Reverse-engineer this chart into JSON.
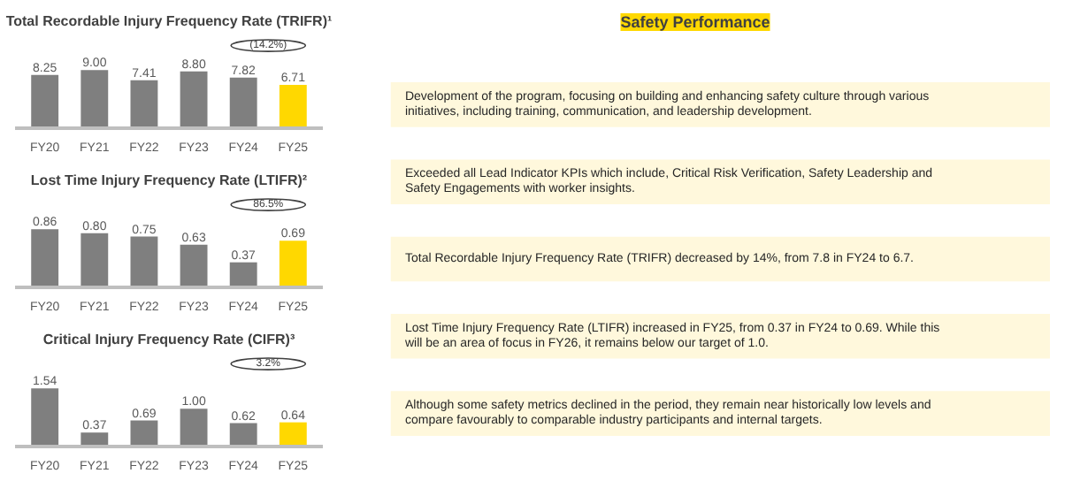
{
  "chart_data": [
    {
      "type": "bar",
      "title": "Total Recordable Injury Frequency Rate (TRIFR)¹",
      "categories": [
        "FY20",
        "FY21",
        "FY22",
        "FY23",
        "FY24",
        "FY25"
      ],
      "values": [
        8.25,
        9.0,
        7.41,
        8.8,
        7.82,
        6.71
      ],
      "colors": [
        "#7f7f7f",
        "#7f7f7f",
        "#7f7f7f",
        "#7f7f7f",
        "#7f7f7f",
        "#ffd800"
      ],
      "value_labels": [
        "8.25",
        "9.00",
        "7.41",
        "8.80",
        "7.82",
        "6.71"
      ],
      "annotations": [
        "(14.2%)"
      ]
    },
    {
      "type": "bar",
      "title": "Lost Time Injury Frequency Rate (LTIFR)²",
      "categories": [
        "FY20",
        "FY21",
        "FY22",
        "FY23",
        "FY24",
        "FY25"
      ],
      "values": [
        0.86,
        0.8,
        0.75,
        0.63,
        0.37,
        0.69
      ],
      "colors": [
        "#7f7f7f",
        "#7f7f7f",
        "#7f7f7f",
        "#7f7f7f",
        "#7f7f7f",
        "#ffd800"
      ],
      "value_labels": [
        "0.86",
        "0.80",
        "0.75",
        "0.63",
        "0.37",
        "0.69"
      ],
      "annotations": [
        "86.5%"
      ]
    },
    {
      "type": "bar",
      "title": "Critical Injury Frequency Rate (CIFR)³",
      "categories": [
        "FY20",
        "FY21",
        "FY22",
        "FY23",
        "FY24",
        "FY25"
      ],
      "values": [
        1.54,
        0.37,
        0.69,
        1.0,
        0.62,
        0.64
      ],
      "colors": [
        "#7f7f7f",
        "#7f7f7f",
        "#7f7f7f",
        "#7f7f7f",
        "#7f7f7f",
        "#ffd800"
      ],
      "value_labels": [
        "1.54",
        "0.37",
        "0.69",
        "1.00",
        "0.62",
        "0.64"
      ],
      "annotations": [
        "3.2%"
      ]
    },
    {
      "type": "other",
      "title": "Safety Performance",
      "annotations": [
        "Development of the program, focusing on building and enhancing safety culture through various initiatives, including training, communication, and leadership development.",
        "Exceeded all Lead Indicator KPIs which include, Critical Risk Verification, Safety Leadership and Safety Engagements with worker insights.",
        "Total Recordable Injury Frequency Rate (TRIFR) decreased by 14%, from 7.8 in FY24 to 6.7.",
        "Lost Time Injury Frequency Rate (LTIFR) increased in FY25, from 0.37 in FY24 to 0.69. While this will be an area of focus in FY26, it remains below our target of 1.0.",
        "Although some safety metrics declined in the period, they remain near historically low levels and compare favourably to comparable industry participants and internal targets."
      ]
    }
  ]
}
